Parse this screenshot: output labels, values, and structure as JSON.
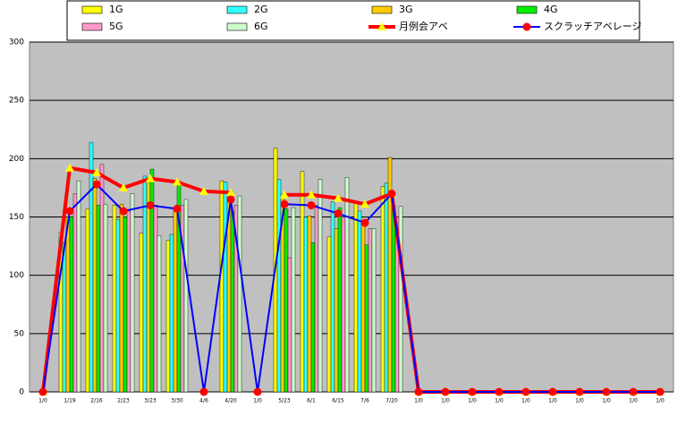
{
  "chart_data": {
    "type": "bar_line",
    "categories": [
      "1/0",
      "1/19",
      "2/16",
      "2/23",
      "3/23",
      "3/30",
      "4/6",
      "4/20",
      "1/0",
      "5/23",
      "6/1",
      "6/15",
      "7/6",
      "7/20",
      "1/0",
      "1/0",
      "1/0",
      "1/0",
      "1/0",
      "1/0",
      "1/0",
      "1/0",
      "1/0",
      "1/0"
    ],
    "series": [
      {
        "name": "1G",
        "type": "bar",
        "color": "#ffff00",
        "values": [
          null,
          137,
          157,
          160,
          136,
          130,
          null,
          181,
          null,
          209,
          189,
          133,
          163,
          176,
          null,
          null,
          null,
          null,
          null,
          null,
          null,
          null,
          null,
          null
        ]
      },
      {
        "name": "2G",
        "type": "bar",
        "color": "#33ffff",
        "values": [
          null,
          128,
          214,
          148,
          185,
          135,
          null,
          180,
          null,
          182,
          150,
          163,
          155,
          179,
          null,
          null,
          null,
          null,
          null,
          null,
          null,
          null,
          null,
          null
        ]
      },
      {
        "name": "3G",
        "type": "bar",
        "color": "#ffcc00",
        "values": [
          null,
          150,
          183,
          161,
          183,
          156,
          null,
          172,
          null,
          170,
          151,
          140,
          145,
          201,
          null,
          null,
          null,
          null,
          null,
          null,
          null,
          null,
          null,
          null
        ]
      },
      {
        "name": "4G",
        "type": "bar",
        "color": "#00ee00",
        "values": [
          null,
          150,
          160,
          150,
          191,
          177,
          null,
          155,
          null,
          157,
          128,
          158,
          126,
          160,
          null,
          null,
          null,
          null,
          null,
          null,
          null,
          null,
          null,
          null
        ]
      },
      {
        "name": "5G",
        "type": "bar",
        "color": "#ff99cc",
        "values": [
          null,
          170,
          195,
          155,
          160,
          160,
          null,
          160,
          null,
          115,
          160,
          150,
          140,
          150,
          null,
          null,
          null,
          null,
          null,
          null,
          null,
          null,
          null,
          null
        ]
      },
      {
        "name": "6G",
        "type": "bar",
        "color": "#ccffcc",
        "values": [
          null,
          181,
          161,
          170,
          134,
          165,
          null,
          168,
          null,
          158,
          182,
          184,
          140,
          159,
          null,
          null,
          null,
          null,
          null,
          null,
          null,
          null,
          null,
          null
        ]
      },
      {
        "name": "月例会アベ",
        "type": "line",
        "color": "#ff0000",
        "marker_color": "#ffff00",
        "marker": "triangle",
        "values": [
          0,
          192,
          188,
          175,
          183,
          180,
          172,
          171,
          null,
          169,
          169,
          166,
          161,
          170,
          0,
          0,
          0,
          0,
          0,
          0,
          0,
          0,
          0,
          0
        ]
      },
      {
        "name": "スクラッチアベレージ",
        "type": "line",
        "color": "#0000ff",
        "marker_color": "#ff0000",
        "marker": "circle",
        "values": [
          0,
          155,
          178,
          155,
          160,
          157,
          0,
          165,
          0,
          161,
          160,
          153,
          145,
          170,
          0,
          0,
          0,
          0,
          0,
          0,
          0,
          0,
          0,
          0
        ]
      }
    ],
    "ylim": [
      0,
      300
    ],
    "yticks": [
      0,
      50,
      100,
      150,
      200,
      250,
      300
    ],
    "grid": true
  }
}
